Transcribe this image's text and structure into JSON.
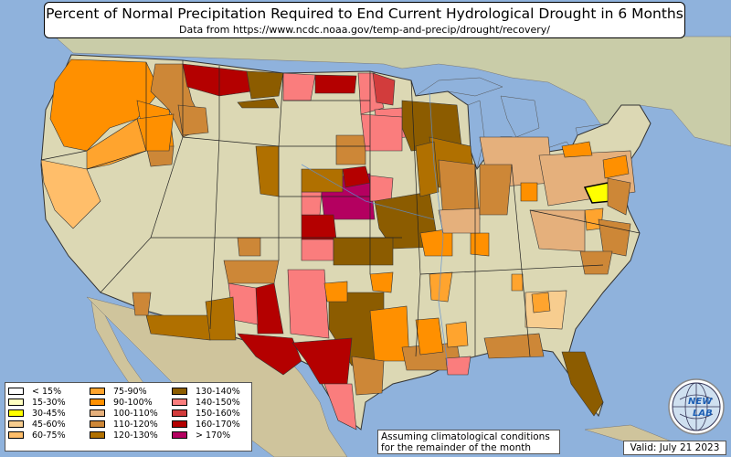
{
  "title": "Percent of Normal Precipitation Required to End Current Hydrological Drought in 6 Months",
  "subtitle": "Data from https://www.ncdc.noaa.gov/temp-and-precip/drought/recovery/",
  "legend": {
    "items": [
      {
        "label": "< 15%",
        "color": "#ffffff"
      },
      {
        "label": "15-30%",
        "color": "#ffffc0"
      },
      {
        "label": "30-45%",
        "color": "#ffff00"
      },
      {
        "label": "45-60%",
        "color": "#f7cd8f"
      },
      {
        "label": "60-75%",
        "color": "#ffbe6a"
      },
      {
        "label": "75-90%",
        "color": "#ffa42e"
      },
      {
        "label": "90-100%",
        "color": "#ff9000"
      },
      {
        "label": "100-110%",
        "color": "#e5b07c"
      },
      {
        "label": "110-120%",
        "color": "#cd8737"
      },
      {
        "label": "120-130%",
        "color": "#b07000"
      },
      {
        "label": "130-140%",
        "color": "#8c5c00"
      },
      {
        "label": "140-150%",
        "color": "#fa7d7d"
      },
      {
        "label": "150-160%",
        "color": "#d23c3c"
      },
      {
        "label": "160-170%",
        "color": "#b40000"
      },
      {
        "label": "> 170%",
        "color": "#b40060"
      }
    ]
  },
  "note": {
    "line1": "Assuming climatological conditions",
    "line2": "for the remainder of the month"
  },
  "valid": "Valid: July 21 2023",
  "logo": {
    "text_top": "NEW",
    "text_bottom": "LAB",
    "icon": "globe-logo-icon"
  },
  "colors": {
    "ocean": "#8fb2dc",
    "land": "#dcd8b4",
    "canada": "#c5c9a9",
    "mexico": "#d2c8a0",
    "water": "#8fb2dc"
  }
}
